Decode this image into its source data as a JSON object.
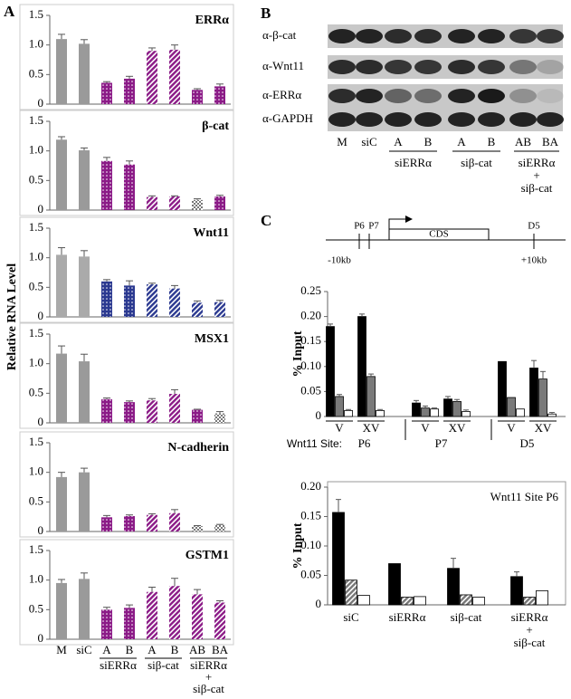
{
  "panel_labels": {
    "a": "A",
    "b": "B",
    "c": "C"
  },
  "shared_ylabel": "Relative RNA Level",
  "chart_data": [
    {
      "type": "bar",
      "title": "ERRα",
      "values": [
        1.1,
        1.02,
        0.36,
        0.43,
        0.9,
        0.92,
        0.24,
        0.3
      ],
      "errors": [
        0.08,
        0.07,
        0.02,
        0.04,
        0.05,
        0.08,
        0.02,
        0.04
      ],
      "colors": [
        "#9a9a9a",
        "#9a9a9a",
        "#8b1b87",
        "#8b1b87",
        "#8b1b87",
        "#8b1b87",
        "#8b1b87",
        "#8b1b87"
      ],
      "patterns": [
        "solid",
        "solid",
        "dots",
        "dots",
        "hatch",
        "hatch",
        "dots",
        "dots"
      ],
      "ylim": [
        0,
        1.5
      ],
      "yticks": [
        0,
        0.5,
        {
          "value": 1,
          "label": "1.0"
        },
        1.5
      ]
    },
    {
      "type": "bar",
      "title": "β-cat",
      "values": [
        1.19,
        1.01,
        0.83,
        0.77,
        0.22,
        0.23,
        0.17,
        0.23
      ],
      "errors": [
        0.05,
        0.04,
        0.06,
        0.06,
        0.02,
        0.01,
        0.02,
        0.02
      ],
      "colors": [
        "#9a9a9a",
        "#9a9a9a",
        "#8b1b87",
        "#8b1b87",
        "#8b1b87",
        "#8b1b87",
        "#777777",
        "#8b1b87"
      ],
      "patterns": [
        "solid",
        "solid",
        "dots",
        "dots",
        "hatch",
        "hatch",
        "check",
        "dots"
      ],
      "ylim": [
        0,
        1.5
      ],
      "yticks": [
        0,
        0.5,
        {
          "value": 1,
          "label": "1.0"
        },
        1.5
      ]
    },
    {
      "type": "bar",
      "title": "Wnt11",
      "values": [
        1.05,
        1.02,
        0.6,
        0.53,
        0.55,
        0.48,
        0.24,
        0.25
      ],
      "errors": [
        0.12,
        0.1,
        0.03,
        0.08,
        0.02,
        0.05,
        0.03,
        0.03
      ],
      "colors": [
        "#aaaaaa",
        "#aaaaaa",
        "#2b3990",
        "#2b3990",
        "#2b3990",
        "#2b3990",
        "#2b3990",
        "#2b3990"
      ],
      "patterns": [
        "solid",
        "solid",
        "dots",
        "dots",
        "hatch",
        "hatch",
        "hatch",
        "hatch"
      ],
      "ylim": [
        0,
        1.5
      ],
      "yticks": [
        0,
        0.5,
        {
          "value": 1,
          "label": "1.0"
        },
        1.5
      ]
    },
    {
      "type": "bar",
      "title": "MSX1",
      "values": [
        1.17,
        1.04,
        0.4,
        0.35,
        0.38,
        0.49,
        0.22,
        0.16
      ],
      "errors": [
        0.13,
        0.12,
        0.02,
        0.02,
        0.03,
        0.07,
        0.01,
        0.03
      ],
      "colors": [
        "#9a9a9a",
        "#9a9a9a",
        "#8b1b87",
        "#8b1b87",
        "#8b1b87",
        "#8b1b87",
        "#8b1b87",
        "#777777"
      ],
      "patterns": [
        "solid",
        "solid",
        "dots",
        "dots",
        "hatch",
        "hatch",
        "dots",
        "check"
      ],
      "ylim": [
        0,
        1.5
      ],
      "yticks": [
        0,
        0.5,
        {
          "value": 1,
          "label": "1.0"
        },
        1.5
      ]
    },
    {
      "type": "bar",
      "title": "N-cadherin",
      "values": [
        0.92,
        1.0,
        0.24,
        0.26,
        0.28,
        0.31,
        0.09,
        0.11
      ],
      "errors": [
        0.08,
        0.07,
        0.03,
        0.02,
        0.02,
        0.06,
        0.01,
        0.01
      ],
      "colors": [
        "#9a9a9a",
        "#9a9a9a",
        "#8b1b87",
        "#8b1b87",
        "#8b1b87",
        "#8b1b87",
        "#777777",
        "#777777"
      ],
      "patterns": [
        "solid",
        "solid",
        "dots",
        "dots",
        "hatch",
        "hatch",
        "check",
        "check"
      ],
      "ylim": [
        0,
        1.5
      ],
      "yticks": [
        0,
        0.5,
        {
          "value": 1,
          "label": "1.0"
        },
        1.5
      ]
    },
    {
      "type": "bar",
      "title": "GSTM1",
      "values": [
        0.95,
        1.02,
        0.5,
        0.53,
        0.8,
        0.9,
        0.76,
        0.62
      ],
      "errors": [
        0.06,
        0.1,
        0.04,
        0.05,
        0.08,
        0.13,
        0.08,
        0.03
      ],
      "colors": [
        "#9a9a9a",
        "#9a9a9a",
        "#8b1b87",
        "#8b1b87",
        "#8b1b87",
        "#8b1b87",
        "#8b1b87",
        "#8b1b87"
      ],
      "patterns": [
        "solid",
        "solid",
        "dots",
        "dots",
        "hatch",
        "hatch",
        "hatch",
        "hatch"
      ],
      "ylim": [
        0,
        1.5
      ],
      "yticks": [
        0,
        0.5,
        {
          "value": 1,
          "label": "1.0"
        },
        1.5
      ],
      "categories": [
        "M",
        "siC",
        "A",
        "B",
        "A",
        "B",
        "AB",
        "BA"
      ],
      "groups": [
        [
          "siERRα"
        ],
        [
          "siβ-cat"
        ],
        [
          "siERRα",
          "+",
          "siβ-cat"
        ]
      ]
    },
    {
      "type": "grouped_bar",
      "ylabel": "% Input",
      "categories": [
        "V",
        "XV",
        "V",
        "XV",
        "V",
        "XV"
      ],
      "site_label": "Wnt11 Site:",
      "sites": [
        "P6",
        "P7",
        "D5"
      ],
      "series": [
        {
          "color": "#000000",
          "pattern": "solid",
          "values": [
            0.18,
            0.2,
            0.027,
            0.035,
            0.11,
            0.097
          ],
          "errors": [
            0.005,
            0.005,
            0.005,
            0.005,
            null,
            0.015
          ]
        },
        {
          "color": "#7a7a7a",
          "pattern": "solid",
          "values": [
            0.04,
            0.08,
            0.017,
            0.03,
            0.038,
            0.075
          ],
          "errors": [
            0.004,
            0.005,
            0.004,
            0.004,
            null,
            0.015
          ]
        },
        {
          "color": "#ffffff",
          "pattern": "solid",
          "values": [
            0.012,
            0.012,
            0.015,
            0.01,
            0.015,
            0.005
          ],
          "errors": [
            0.002,
            0.002,
            0.002,
            0.003,
            null,
            0.003
          ]
        }
      ],
      "ylim": [
        0,
        0.25
      ],
      "yticks": [
        0,
        0.05,
        {
          "value": 0.1,
          "label": "0.10"
        },
        0.15,
        {
          "value": 0.2,
          "label": "0.20"
        },
        0.25
      ]
    },
    {
      "type": "grouped_bar",
      "title": "Wnt11 Site P6",
      "ylabel": "% Input",
      "categories": [
        [
          "siC"
        ],
        [
          "siERRα"
        ],
        [
          "siβ-cat"
        ],
        [
          "siERRα",
          "+",
          "siβ-cat"
        ]
      ],
      "series": [
        {
          "color": "#000000",
          "pattern": "solid",
          "values": [
            0.157,
            0.07,
            0.062,
            0.048
          ],
          "errors": [
            0.022,
            null,
            0.017,
            0.008
          ]
        },
        {
          "color": "#777777",
          "pattern": "hatch",
          "values": [
            0.042,
            0.013,
            0.017,
            0.013
          ],
          "errors": [
            null,
            null,
            null,
            null
          ]
        },
        {
          "color": "#ffffff",
          "pattern": "solid",
          "values": [
            0.016,
            0.014,
            0.013,
            0.024
          ],
          "errors": [
            null,
            null,
            null,
            null
          ]
        }
      ],
      "ylim": [
        0,
        0.2
      ],
      "yticks": [
        0,
        0.05,
        {
          "value": 0.1,
          "label": "0.10"
        },
        0.15,
        {
          "value": 0.2,
          "label": "0.20"
        }
      ]
    }
  ],
  "blot": {
    "antibodies": [
      "α-β-cat",
      "α-Wnt11",
      "α-ERRα",
      "α-GAPDH"
    ],
    "lanes": [
      "M",
      "siC",
      "A",
      "B",
      "A",
      "B",
      "AB",
      "BA"
    ],
    "groups": [
      [
        "siERRα"
      ],
      [
        "siβ-cat"
      ],
      [
        "siERRα",
        "+",
        "siβ-cat"
      ]
    ]
  },
  "diagram": {
    "sites": [
      "P6",
      "P7",
      "D5"
    ],
    "region": "CDS",
    "left": "-10kb",
    "right": "+10kb"
  }
}
